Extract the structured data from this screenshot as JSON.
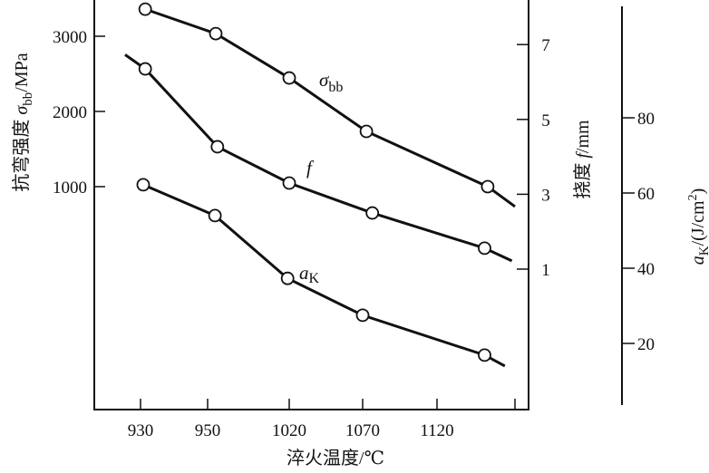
{
  "chart_data": {
    "type": "line",
    "xlabel": "淬火温度/℃",
    "x_ticks": [
      "930",
      "950",
      "1020",
      "1070",
      "1120",
      ""
    ],
    "y_axes": [
      {
        "id": "sigma",
        "label_prefix": "抗弯强度 ",
        "label_symbol": "σ",
        "label_sub": "bb",
        "label_suffix": "/MPa",
        "ticks": [
          1000,
          2000,
          3000
        ]
      },
      {
        "id": "f",
        "label_prefix": "挠度 ",
        "label_symbol": "f",
        "label_suffix": "/mm",
        "ticks": [
          1,
          3,
          5,
          7
        ]
      },
      {
        "id": "aK",
        "label_symbol": "a",
        "label_sub": "K",
        "label_suffix": "/(J/cm",
        "label_sup": "2",
        "label_end": ")",
        "ticks": [
          20,
          40,
          60,
          80
        ]
      }
    ],
    "series": [
      {
        "name": "σbb",
        "label_symbol": "σ",
        "label_sub": "bb",
        "axis": "sigma",
        "points": [
          [
            0.07,
            3360
          ],
          [
            1.1,
            3035
          ],
          [
            2.0,
            2445
          ],
          [
            3.05,
            1735
          ],
          [
            4.65,
            1000
          ]
        ],
        "line_end": [
          5.0,
          735
        ]
      },
      {
        "name": "f",
        "label_symbol": "f",
        "axis": "f",
        "line_start": [
          -0.23,
          6.73
        ],
        "points": [
          [
            0.07,
            6.35
          ],
          [
            1.12,
            4.27
          ],
          [
            2.0,
            3.3
          ],
          [
            3.13,
            2.5
          ],
          [
            4.61,
            1.56
          ]
        ],
        "line_end": [
          4.96,
          1.22
        ]
      },
      {
        "name": "aK",
        "label_symbol": "a",
        "label_sub": "K",
        "axis": "aK",
        "points": [
          [
            0.04,
            62.2
          ],
          [
            1.09,
            54.0
          ],
          [
            1.98,
            37.3
          ],
          [
            3.0,
            27.5
          ],
          [
            4.61,
            16.9
          ]
        ],
        "line_end": [
          4.87,
          14.0
        ]
      }
    ]
  }
}
